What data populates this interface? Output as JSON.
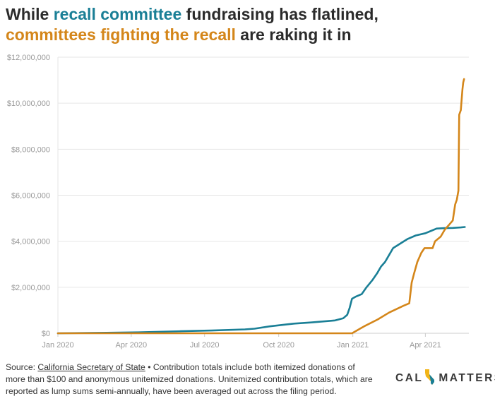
{
  "title": {
    "part1": "While ",
    "highlight1": "recall committee",
    "part2": " fundraising has flatlined, ",
    "highlight2": "committees fighting the recall",
    "part3": " are raking it in"
  },
  "colors": {
    "recall": "#1a7f96",
    "anti_recall": "#d4861a",
    "grid": "#e6e6e6",
    "tick_text": "#999999"
  },
  "footer": {
    "source_label": "Source: ",
    "source_link": "California Secretary of State",
    "note": " • Contribution totals include both itemized donations of more than $100 and anonymous unitemized donations. Unitemized contribution totals, which are reported as lump sums semi-annually, have been averaged out across the filing period."
  },
  "logo": {
    "left": "CAL",
    "right": "MATTERS",
    "icon": "california-state-icon"
  },
  "chart_data": {
    "type": "line",
    "title": "While recall committee fundraising has flatlined, committees fighting the recall are raking it in",
    "xlabel": "",
    "ylabel": "",
    "x_type": "date",
    "xlim": [
      "2020-01-01",
      "2021-05-25"
    ],
    "ylim": [
      0,
      12000000
    ],
    "x_ticks": [
      {
        "date": "2020-01-01",
        "label": "Jan 2020"
      },
      {
        "date": "2020-04-01",
        "label": "Apr 2020"
      },
      {
        "date": "2020-07-01",
        "label": "Jul 2020"
      },
      {
        "date": "2020-10-01",
        "label": "Oct 2020"
      },
      {
        "date": "2021-01-01",
        "label": "Jan 2021"
      },
      {
        "date": "2021-04-01",
        "label": "Apr 2021"
      }
    ],
    "y_ticks": [
      {
        "value": 0,
        "label": "$0"
      },
      {
        "value": 2000000,
        "label": "$2,000,000"
      },
      {
        "value": 4000000,
        "label": "$4,000,000"
      },
      {
        "value": 6000000,
        "label": "$6,000,000"
      },
      {
        "value": 8000000,
        "label": "$8,000,000"
      },
      {
        "value": 10000000,
        "label": "$10,000,000"
      },
      {
        "value": 12000000,
        "label": "$12,000,000"
      }
    ],
    "grid": true,
    "legend": "none",
    "series": [
      {
        "color": "#1a7f96",
        "points": [
          [
            "2020-01-01",
            0
          ],
          [
            "2020-03-01",
            20000
          ],
          [
            "2020-04-10",
            40000
          ],
          [
            "2020-06-01",
            90000
          ],
          [
            "2020-07-10",
            120000
          ],
          [
            "2020-08-20",
            170000
          ],
          [
            "2020-09-01",
            200000
          ],
          [
            "2020-09-20",
            300000
          ],
          [
            "2020-10-10",
            380000
          ],
          [
            "2020-10-20",
            420000
          ],
          [
            "2020-11-10",
            470000
          ],
          [
            "2020-12-01",
            530000
          ],
          [
            "2020-12-10",
            560000
          ],
          [
            "2020-12-20",
            650000
          ],
          [
            "2020-12-25",
            800000
          ],
          [
            "2020-12-28",
            1100000
          ],
          [
            "2020-12-31",
            1500000
          ],
          [
            "2021-01-05",
            1600000
          ],
          [
            "2021-01-12",
            1700000
          ],
          [
            "2021-01-18",
            2000000
          ],
          [
            "2021-01-25",
            2300000
          ],
          [
            "2021-01-31",
            2600000
          ],
          [
            "2021-02-05",
            2900000
          ],
          [
            "2021-02-10",
            3100000
          ],
          [
            "2021-02-15",
            3400000
          ],
          [
            "2021-02-20",
            3700000
          ],
          [
            "2021-03-01",
            3900000
          ],
          [
            "2021-03-10",
            4100000
          ],
          [
            "2021-03-20",
            4250000
          ],
          [
            "2021-04-01",
            4350000
          ],
          [
            "2021-04-08",
            4450000
          ],
          [
            "2021-04-15",
            4550000
          ],
          [
            "2021-04-25",
            4570000
          ],
          [
            "2021-05-05",
            4580000
          ],
          [
            "2021-05-15",
            4600000
          ],
          [
            "2021-05-20",
            4620000
          ]
        ]
      },
      {
        "color": "#d4861a",
        "points": [
          [
            "2020-01-01",
            0
          ],
          [
            "2020-12-31",
            0
          ],
          [
            "2021-01-15",
            300000
          ],
          [
            "2021-02-01",
            600000
          ],
          [
            "2021-02-15",
            900000
          ],
          [
            "2021-03-05",
            1200000
          ],
          [
            "2021-03-12",
            1300000
          ],
          [
            "2021-03-15",
            2200000
          ],
          [
            "2021-03-18",
            2600000
          ],
          [
            "2021-03-22",
            3100000
          ],
          [
            "2021-03-27",
            3500000
          ],
          [
            "2021-03-31",
            3700000
          ],
          [
            "2021-04-10",
            3700000
          ],
          [
            "2021-04-13",
            4000000
          ],
          [
            "2021-04-20",
            4200000
          ],
          [
            "2021-04-25",
            4500000
          ],
          [
            "2021-04-30",
            4700000
          ],
          [
            "2021-05-05",
            4900000
          ],
          [
            "2021-05-08",
            5600000
          ],
          [
            "2021-05-10",
            5800000
          ],
          [
            "2021-05-12",
            6200000
          ],
          [
            "2021-05-13",
            9500000
          ],
          [
            "2021-05-15",
            9700000
          ],
          [
            "2021-05-17",
            10600000
          ],
          [
            "2021-05-18",
            10900000
          ],
          [
            "2021-05-19",
            11050000
          ]
        ]
      }
    ]
  }
}
